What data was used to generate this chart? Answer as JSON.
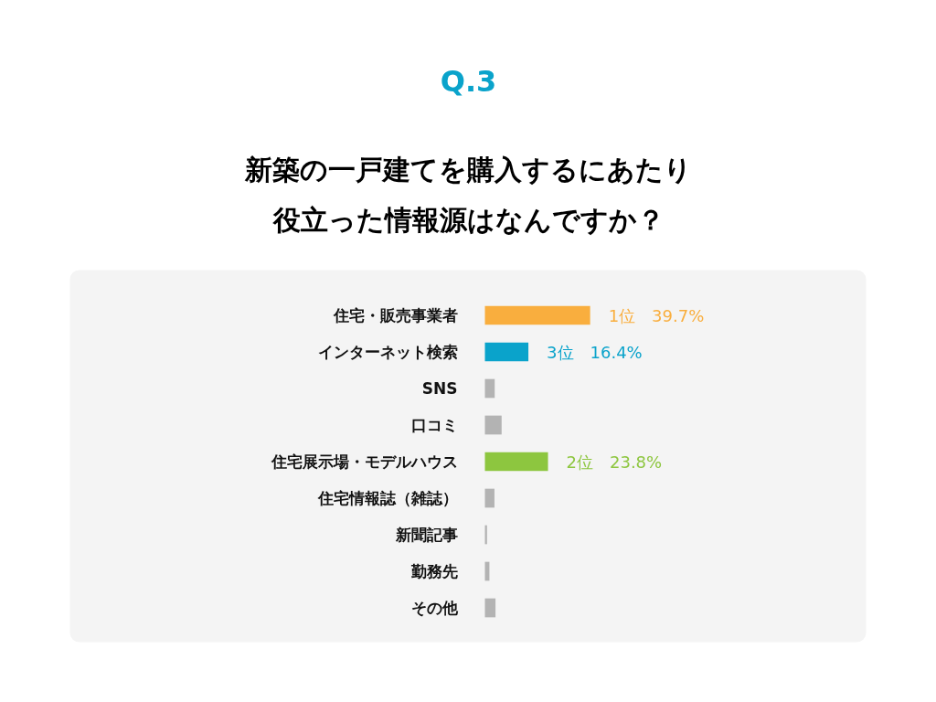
{
  "chart_data": {
    "type": "bar",
    "orientation": "horizontal",
    "title": "新築の一戸建てを購入するにあたり役立った情報源はなんですか？",
    "annotations": [
      "Q.3"
    ],
    "categories": [
      "住宅・販売事業者",
      "インターネット検索",
      "SNS",
      "口コミ",
      "住宅展示場・モデルハウス",
      "住宅情報誌（雑誌）",
      "新聞記事",
      "勤務先",
      "その他"
    ],
    "values": [
      39.7,
      16.4,
      3.7,
      6.3,
      23.8,
      3.6,
      0.8,
      1.7,
      4.0
    ],
    "colors": [
      "#f9ae3e",
      "#0aa3cb",
      "#b3b3b3",
      "#b3b3b3",
      "#8dc63f",
      "#b3b3b3",
      "#b3b3b3",
      "#b3b3b3",
      "#b3b3b3"
    ],
    "value_labels": [
      "1位　39.7%",
      "3位　16.4%",
      null,
      null,
      "2位　23.8%",
      null,
      null,
      null,
      null
    ]
  }
}
